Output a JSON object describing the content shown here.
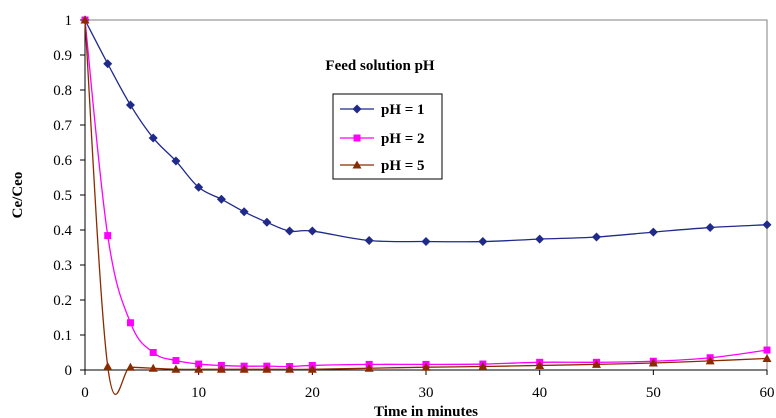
{
  "chart_data": {
    "type": "line",
    "title": "",
    "xlabel": "Time in minutes",
    "ylabel": "Ce/Ceo",
    "xlim": [
      0,
      60
    ],
    "ylim": [
      0,
      1
    ],
    "xticks": [
      0,
      10,
      20,
      30,
      40,
      50,
      60
    ],
    "yticks": [
      0,
      0.1,
      0.2,
      0.3,
      0.4,
      0.5,
      0.6,
      0.7,
      0.8,
      0.9,
      1
    ],
    "grid": false,
    "legend": {
      "title": "Feed solution pH",
      "placement": "center-left"
    },
    "series": [
      {
        "name": "pH = 1",
        "color": "#1f2a8a",
        "marker": "diamond",
        "x": [
          0,
          2,
          4,
          6,
          8,
          10,
          12,
          14,
          16,
          18,
          20,
          25,
          30,
          35,
          40,
          45,
          50,
          55,
          60
        ],
        "y": [
          1,
          0.875,
          0.757,
          0.663,
          0.597,
          0.522,
          0.488,
          0.452,
          0.422,
          0.397,
          0.397,
          0.37,
          0.367,
          0.367,
          0.374,
          0.38,
          0.394,
          0.407,
          0.415
        ]
      },
      {
        "name": "pH = 2",
        "color": "#ff00ff",
        "marker": "square",
        "x": [
          0,
          2,
          4,
          6,
          8,
          10,
          12,
          14,
          16,
          18,
          20,
          25,
          30,
          35,
          40,
          45,
          50,
          55,
          60
        ],
        "y": [
          1,
          0.384,
          0.135,
          0.05,
          0.027,
          0.017,
          0.013,
          0.011,
          0.011,
          0.01,
          0.013,
          0.016,
          0.016,
          0.017,
          0.022,
          0.022,
          0.025,
          0.035,
          0.057
        ]
      },
      {
        "name": "pH = 5",
        "color": "#8b2a00",
        "marker": "triangle",
        "x": [
          0,
          2,
          4,
          6,
          8,
          10,
          12,
          14,
          16,
          18,
          20,
          25,
          30,
          35,
          40,
          45,
          50,
          55,
          60
        ],
        "y": [
          1,
          0.01,
          0.008,
          0.005,
          0.002,
          0.002,
          0.002,
          0.002,
          0.002,
          0.002,
          0.002,
          0.005,
          0.008,
          0.01,
          0.013,
          0.016,
          0.02,
          0.026,
          0.033
        ]
      }
    ]
  }
}
